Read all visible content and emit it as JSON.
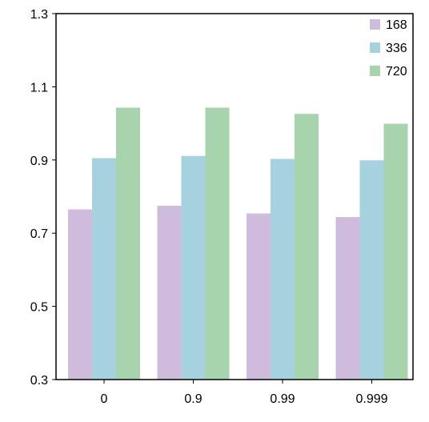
{
  "chart_data": {
    "type": "bar",
    "title": "",
    "xlabel": "",
    "ylabel": "",
    "categories": [
      "0",
      "0.9",
      "0.99",
      "0.999"
    ],
    "series": [
      {
        "name": "168",
        "color": "#cfbcdc",
        "values": [
          0.765,
          0.775,
          0.754,
          0.744
        ]
      },
      {
        "name": "336",
        "color": "#a6d2df",
        "values": [
          0.905,
          0.911,
          0.903,
          0.899
        ]
      },
      {
        "name": "720",
        "color": "#a7d3ad",
        "values": [
          1.043,
          1.043,
          1.026,
          0.999
        ]
      }
    ],
    "ylim": [
      0.3,
      1.3
    ],
    "yticks": [
      "0.3",
      "0.5",
      "0.7",
      "0.9",
      "1.1",
      "1.3"
    ],
    "grid": false,
    "legend_position": "top-right"
  }
}
